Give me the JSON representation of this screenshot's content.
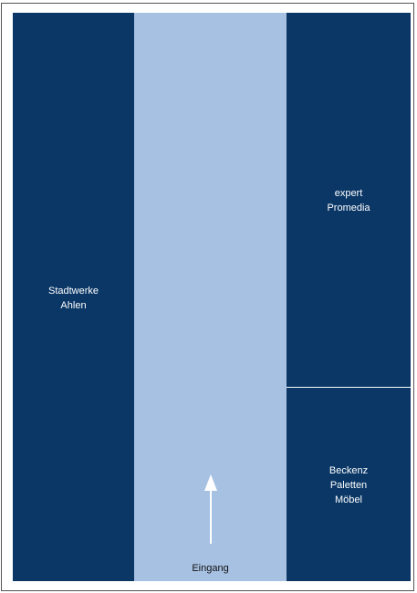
{
  "colors": {
    "store_fill": "#0a3766",
    "aisle_fill": "#a7c1e3",
    "border": "#555555",
    "arrow": "#ffffff"
  },
  "stores": {
    "left": {
      "line1": "Stadtwerke",
      "line2": "Ahlen"
    },
    "right_top": {
      "line1": "expert",
      "line2": "Promedia"
    },
    "right_bottom": {
      "line1": "Beckenz",
      "line2": "Paletten",
      "line3": "Möbel"
    }
  },
  "entrance": {
    "label": "Eingang",
    "arrow_icon": "arrow-up-icon"
  }
}
